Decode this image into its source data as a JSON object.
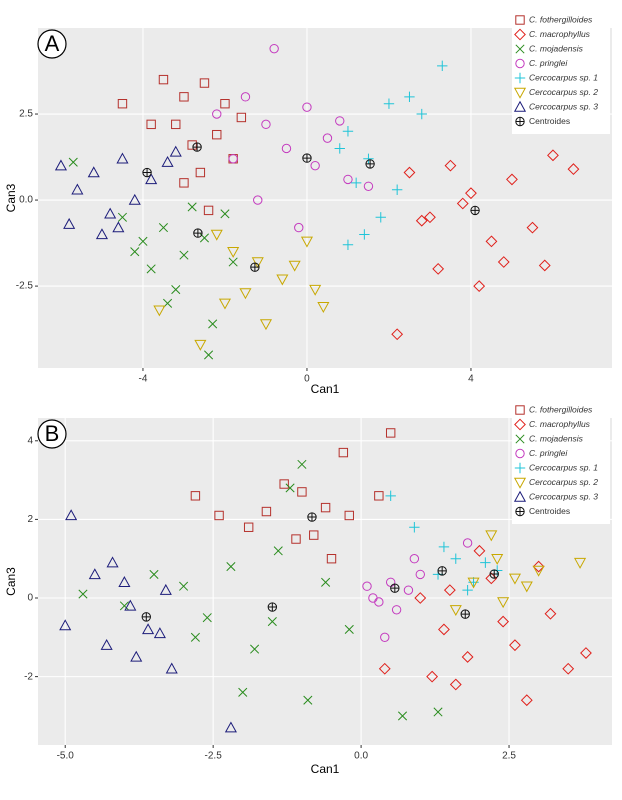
{
  "chart_data": [
    {
      "type": "scatter",
      "panel_label": "A",
      "xlabel": "Can1",
      "ylabel": "Can3",
      "xlim": [
        -6.56,
        7.44
      ],
      "ylim": [
        -4.88,
        5.0
      ],
      "xticks": [
        -4,
        0,
        4
      ],
      "yticks": [
        -2.5,
        {
          "value": 0,
          "label": "0.0"
        },
        2.5
      ],
      "grid": true,
      "legend": "top-right",
      "series": [
        {
          "name": "C. fothergilloides",
          "marker": "square",
          "color": "#b5312c",
          "x": [
            -3.5,
            -3,
            -2.5,
            -2,
            -3.2,
            -2.8,
            -2.2,
            -1.6,
            -4.5,
            -3.8,
            -2.6,
            -1.8,
            -3,
            -2.4
          ],
          "y": [
            3.5,
            3,
            3.4,
            2.8,
            2.2,
            1.6,
            1.9,
            2.4,
            2.8,
            2.2,
            0.8,
            1.2,
            0.5,
            -0.3
          ]
        },
        {
          "name": "C. macrophyllus",
          "marker": "diamond",
          "color": "#e0201b",
          "x": [
            2.5,
            3,
            3.5,
            4,
            4.5,
            5,
            5.5,
            6,
            3.2,
            4.2,
            4.8,
            2.8,
            3.8,
            5.8,
            6.5,
            2.2
          ],
          "y": [
            0.8,
            -0.5,
            1.0,
            0.2,
            -1.2,
            0.6,
            -0.8,
            1.3,
            -2.0,
            -2.5,
            -1.8,
            -0.6,
            -0.1,
            -1.9,
            0.9,
            -3.9
          ]
        },
        {
          "name": "C. mojadensis",
          "marker": "x",
          "color": "#2a8c1e",
          "x": [
            -4.5,
            -4,
            -3.5,
            -3,
            -2.5,
            -2,
            -3.8,
            -3.2,
            -2.8,
            -4.2,
            -1.8,
            -2.4,
            -3.4,
            -2.3,
            -5.7
          ],
          "y": [
            -0.5,
            -1.2,
            -0.8,
            -1.6,
            -1.1,
            -0.4,
            -2.0,
            -2.6,
            -0.2,
            -1.5,
            -1.8,
            -4.5,
            -3.0,
            -3.6,
            1.1
          ]
        },
        {
          "name": "C. pringlei",
          "marker": "circle",
          "color": "#c43bbf",
          "x": [
            -1.5,
            -1,
            -0.5,
            0,
            0.5,
            1,
            -0.8,
            0.2,
            -1.8,
            0.8,
            -1.2,
            -2.2,
            1.5,
            -0.2
          ],
          "y": [
            3.0,
            2.2,
            1.5,
            2.7,
            1.8,
            0.6,
            4.4,
            1.0,
            1.2,
            2.3,
            0.0,
            2.5,
            0.4,
            -0.8
          ]
        },
        {
          "name": "Cercocarpus sp. 1",
          "marker": "plus",
          "color": "#1fc4d8",
          "x": [
            1,
            1.5,
            2,
            2.5,
            1.2,
            1.8,
            2.8,
            0.8,
            1.4,
            2.2,
            3.3,
            1.0
          ],
          "y": [
            2.0,
            1.2,
            2.8,
            3.0,
            0.5,
            -0.5,
            2.5,
            1.5,
            -1.0,
            0.3,
            3.9,
            -1.3
          ]
        },
        {
          "name": "Cercocarpus sp. 2",
          "marker": "triangle-down",
          "color": "#c8a800",
          "x": [
            -2.2,
            -1.8,
            -1.2,
            -0.6,
            0,
            0.4,
            -1.5,
            -2.6,
            -1.0,
            -2.0,
            -0.3,
            0.2,
            -3.6
          ],
          "y": [
            -1.0,
            -1.5,
            -1.8,
            -2.3,
            -1.2,
            -3.1,
            -2.7,
            -4.2,
            -3.6,
            -3.0,
            -1.9,
            -2.6,
            -3.2
          ]
        },
        {
          "name": "Cercocarpus sp. 3",
          "marker": "triangle",
          "color": "#1c1c7a",
          "x": [
            -6,
            -5.6,
            -5.2,
            -4.8,
            -4.5,
            -4.2,
            -3.8,
            -3.4,
            -5,
            -4.6,
            -3.2,
            -5.8
          ],
          "y": [
            1.0,
            0.3,
            0.8,
            -0.4,
            1.2,
            0.0,
            0.6,
            1.1,
            -1.0,
            -0.8,
            1.4,
            -0.7
          ]
        },
        {
          "name": "Centroides",
          "marker": "centroid",
          "color": "#111111",
          "x": [
            -2.68,
            4.1,
            -2.66,
            0,
            1.54,
            -1.27,
            -3.9
          ],
          "y": [
            1.54,
            -0.3,
            -0.96,
            1.22,
            1.05,
            -1.95,
            0.8
          ]
        }
      ]
    },
    {
      "type": "scatter",
      "panel_label": "B",
      "xlabel": "Can1",
      "ylabel": "Can3",
      "xlim": [
        -5.46,
        4.24
      ],
      "ylim": [
        -3.74,
        4.58
      ],
      "xticks": [
        {
          "value": -5,
          "label": "-5.0"
        },
        -2.5,
        {
          "value": 0,
          "label": "0.0"
        },
        2.5
      ],
      "yticks": [
        -2,
        0,
        2,
        4
      ],
      "grid": true,
      "legend": "top-right",
      "series": [
        {
          "name": "C. fothergilloides",
          "marker": "square",
          "color": "#b5312c",
          "x": [
            -1.3,
            -1.0,
            -0.6,
            -0.3,
            -1.6,
            -0.8,
            -0.2,
            -2.4,
            -2.8,
            -1.9,
            0.5,
            -1.1,
            -0.5,
            0.3
          ],
          "y": [
            2.9,
            2.7,
            2.3,
            3.7,
            2.2,
            1.6,
            2.1,
            2.1,
            2.6,
            1.8,
            4.2,
            1.5,
            1.0,
            2.6
          ]
        },
        {
          "name": "C. macrophyllus",
          "marker": "diamond",
          "color": "#e0201b",
          "x": [
            1.0,
            1.4,
            1.8,
            2.2,
            2.6,
            3.0,
            3.5,
            3.8,
            1.2,
            1.6,
            2.0,
            2.4,
            0.4,
            3.2,
            2.8,
            1.5
          ],
          "y": [
            0.0,
            -0.8,
            -1.5,
            0.5,
            -1.2,
            0.8,
            -1.8,
            -1.4,
            -2.0,
            -2.2,
            1.2,
            -0.6,
            -1.8,
            -0.4,
            -2.6,
            0.2
          ]
        },
        {
          "name": "C. mojadensis",
          "marker": "x",
          "color": "#2a8c1e",
          "x": [
            -4.7,
            -4.0,
            -3.5,
            -3.0,
            -2.6,
            -2.2,
            -1.8,
            -1.4,
            -1.0,
            -0.6,
            -0.2,
            -2.0,
            -1.5,
            -1.2,
            -2.8,
            -0.9,
            0.7,
            1.3
          ],
          "y": [
            0.1,
            -0.2,
            0.6,
            0.3,
            -0.5,
            0.8,
            -1.3,
            1.2,
            3.4,
            0.4,
            -0.8,
            -2.4,
            -0.6,
            2.8,
            -1.0,
            -2.6,
            -3.0,
            -2.9
          ]
        },
        {
          "name": "C. pringlei",
          "marker": "circle",
          "color": "#c43bbf",
          "x": [
            0.3,
            0.5,
            0.8,
            0.2,
            0.6,
            1.0,
            1.8,
            0.4,
            0.9,
            0.1
          ],
          "y": [
            -0.1,
            0.4,
            0.2,
            0.0,
            -0.3,
            0.6,
            1.4,
            -1.0,
            1.0,
            0.3
          ]
        },
        {
          "name": "Cercocarpus sp. 1",
          "marker": "plus",
          "color": "#1fc4d8",
          "x": [
            0.9,
            1.3,
            1.6,
            1.9,
            2.1,
            1.4,
            0.5,
            1.8,
            2.3
          ],
          "y": [
            1.8,
            0.6,
            1.0,
            0.4,
            0.9,
            1.3,
            2.6,
            0.2,
            0.7
          ]
        },
        {
          "name": "Cercocarpus sp. 2",
          "marker": "triangle-down",
          "color": "#c8a800",
          "x": [
            1.9,
            2.3,
            2.6,
            3.0,
            2.2,
            1.6,
            3.7,
            2.4,
            2.8
          ],
          "y": [
            0.4,
            1.0,
            0.5,
            0.7,
            1.6,
            -0.3,
            0.9,
            -0.1,
            0.3
          ]
        },
        {
          "name": "Cercocarpus sp. 3",
          "marker": "triangle",
          "color": "#1c1c7a",
          "x": [
            -4.9,
            -4.5,
            -4.2,
            -3.9,
            -3.6,
            -3.3,
            -4.3,
            -3.8,
            -3.4,
            -4.0,
            -5.0,
            -2.2,
            -3.2
          ],
          "y": [
            2.1,
            0.6,
            0.9,
            -0.2,
            -0.8,
            0.2,
            -1.2,
            -1.5,
            -0.9,
            0.4,
            -0.7,
            -3.3,
            -1.8
          ]
        },
        {
          "name": "Centroides",
          "marker": "centroid",
          "color": "#111111",
          "x": [
            -0.83,
            1.76,
            -1.5,
            0.57,
            1.37,
            2.25,
            -3.63
          ],
          "y": [
            2.06,
            -0.41,
            -0.23,
            0.25,
            0.69,
            0.61,
            -0.48
          ]
        }
      ]
    }
  ]
}
